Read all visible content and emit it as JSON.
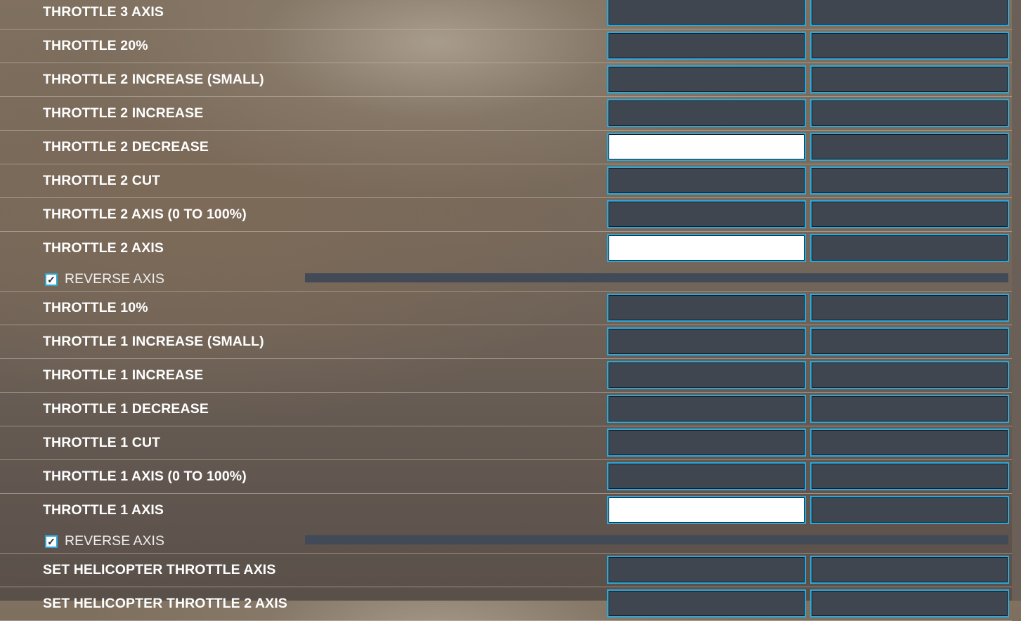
{
  "rows": [
    {
      "label": "THROTTLE 3 AXIS",
      "active": false
    },
    {
      "label": "THROTTLE 20%",
      "active": false
    },
    {
      "label": "THROTTLE 2 INCREASE (SMALL)",
      "active": false
    },
    {
      "label": "THROTTLE 2 INCREASE",
      "active": false
    },
    {
      "label": "THROTTLE 2 DECREASE",
      "active": true
    },
    {
      "label": "THROTTLE 2 CUT",
      "active": false
    },
    {
      "label": "THROTTLE 2 AXIS (0 TO 100%)",
      "active": false
    },
    {
      "label": "THROTTLE 2 AXIS",
      "active": true,
      "reverse_axis": {
        "label": "REVERSE AXIS",
        "checked": true
      }
    },
    {
      "label": "THROTTLE 10%",
      "active": false
    },
    {
      "label": "THROTTLE 1 INCREASE (SMALL)",
      "active": false
    },
    {
      "label": "THROTTLE 1 INCREASE",
      "active": false
    },
    {
      "label": "THROTTLE 1 DECREASE",
      "active": false
    },
    {
      "label": "THROTTLE 1 CUT",
      "active": false
    },
    {
      "label": "THROTTLE 1 AXIS (0 TO 100%)",
      "active": false
    },
    {
      "label": "THROTTLE 1 AXIS",
      "active": true,
      "reverse_axis": {
        "label": "REVERSE AXIS",
        "checked": true
      }
    },
    {
      "label": "SET HELICOPTER THROTTLE AXIS",
      "active": false
    },
    {
      "label": "SET HELICOPTER THROTTLE 2 AXIS",
      "active": false
    }
  ],
  "colors": {
    "accent": "#2fa8d8",
    "field_bg": "#3f4650",
    "active_field_bg": "#ffffff"
  },
  "icons": {
    "checkbox": "check-icon"
  }
}
